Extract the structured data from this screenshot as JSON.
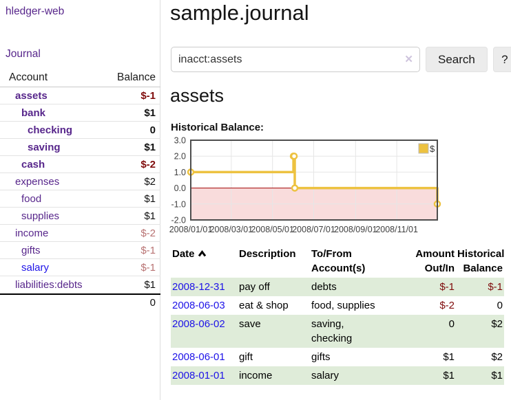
{
  "colors": {
    "accent_purple": "#57268b",
    "link_blue": "#1d12e8",
    "negative": "#7f0b0b",
    "negative_soft": "#b87272",
    "row_highlight_green": "#dfecd9",
    "button_gray": "#ececec",
    "chart_line_yellow": "#edc240"
  },
  "sidebar": {
    "app_title": "hledger-web",
    "journal_label": "Journal",
    "table": {
      "account_header": "Account",
      "balance_header": "Balance",
      "accounts": [
        {
          "label": "assets",
          "indent": 1,
          "bold": true,
          "balance": "$-1",
          "balance_class": "neg",
          "link_class": "purple"
        },
        {
          "label": "bank",
          "indent": 2,
          "bold": true,
          "balance": "$1",
          "balance_class": "",
          "link_class": "purple"
        },
        {
          "label": "checking",
          "indent": 3,
          "bold": true,
          "balance": "0",
          "balance_class": "",
          "link_class": "purple"
        },
        {
          "label": "saving",
          "indent": 3,
          "bold": true,
          "balance": "$1",
          "balance_class": "",
          "link_class": "purple"
        },
        {
          "label": "cash",
          "indent": 2,
          "bold": true,
          "balance": "$-2",
          "balance_class": "neg",
          "link_class": "purple"
        },
        {
          "label": "expenses",
          "indent": 1,
          "bold": false,
          "balance": "$2",
          "balance_class": "",
          "link_class": "purple"
        },
        {
          "label": "food",
          "indent": 2,
          "bold": false,
          "balance": "$1",
          "balance_class": "",
          "link_class": "purple"
        },
        {
          "label": "supplies",
          "indent": 2,
          "bold": false,
          "balance": "$1",
          "balance_class": "",
          "link_class": "purple"
        },
        {
          "label": "income",
          "indent": 1,
          "bold": false,
          "balance": "$-2",
          "balance_class": "negsoft",
          "link_class": "purple"
        },
        {
          "label": "gifts",
          "indent": 2,
          "bold": false,
          "balance": "$-1",
          "balance_class": "negsoft",
          "link_class": "purple"
        },
        {
          "label": "salary",
          "indent": 2,
          "bold": false,
          "balance": "$-1",
          "balance_class": "negsoft",
          "link_class": "blue"
        },
        {
          "label": "liabilities:debts",
          "indent": 1,
          "bold": false,
          "balance": "$1",
          "balance_class": "",
          "link_class": "purple"
        }
      ],
      "total": "0"
    }
  },
  "main": {
    "title": "sample.journal",
    "search": {
      "value": "inacct:assets",
      "clear_icon": "✕",
      "button_label": "Search",
      "help_label": "?"
    },
    "account_heading": "assets",
    "chart_label": "Historical Balance:",
    "register": {
      "headers": {
        "date": "Date",
        "description": "Description",
        "to_from": "To/From\nAccount(s)",
        "amount": "Amount\nOut/In",
        "balance": "Historical\nBalance"
      },
      "rows": [
        {
          "date": "2008-12-31",
          "description": "pay off",
          "to_from": "debts",
          "amount": "$-1",
          "amount_class": "neg",
          "balance": "$-1",
          "balance_class": "neg"
        },
        {
          "date": "2008-06-03",
          "description": "eat & shop",
          "to_from": "food, supplies",
          "amount": "$-2",
          "amount_class": "neg",
          "balance": "0",
          "balance_class": ""
        },
        {
          "date": "2008-06-02",
          "description": "save",
          "to_from": "saving,\nchecking",
          "amount": "0",
          "amount_class": "",
          "balance": "$2",
          "balance_class": ""
        },
        {
          "date": "2008-06-01",
          "description": "gift",
          "to_from": "gifts",
          "amount": "$1",
          "amount_class": "",
          "balance": "$2",
          "balance_class": ""
        },
        {
          "date": "2008-01-01",
          "description": "income",
          "to_from": "salary",
          "amount": "$1",
          "amount_class": "",
          "balance": "$1",
          "balance_class": ""
        }
      ]
    }
  },
  "chart_data": {
    "type": "line",
    "title": "Historical Balance:",
    "step": true,
    "series": [
      {
        "name": "$",
        "color": "#edc240",
        "points": [
          [
            "2008-01-01",
            1
          ],
          [
            "2008-06-01",
            2
          ],
          [
            "2008-06-02",
            2
          ],
          [
            "2008-06-03",
            0
          ],
          [
            "2008-12-31",
            -1
          ]
        ]
      }
    ],
    "xlim": [
      "2008-01-01",
      "2008-12-31"
    ],
    "ylim": [
      -2,
      3
    ],
    "x_ticks": [
      "2008/01/01",
      "2008/03/01",
      "2008/05/01",
      "2008/07/01",
      "2008/09/01",
      "2008/11/01"
    ],
    "y_ticks": [
      -2,
      -1,
      0,
      1,
      2,
      3
    ],
    "grid": true,
    "legend": {
      "label": "$",
      "position": "top-right"
    },
    "negative_region": {
      "below": 0,
      "fill": "#f9dcdc",
      "line": "#a40000"
    },
    "colors": {
      "grid": "#e6e6e6",
      "border": "#4d4d4d",
      "tick": "#3f3f3f"
    }
  }
}
